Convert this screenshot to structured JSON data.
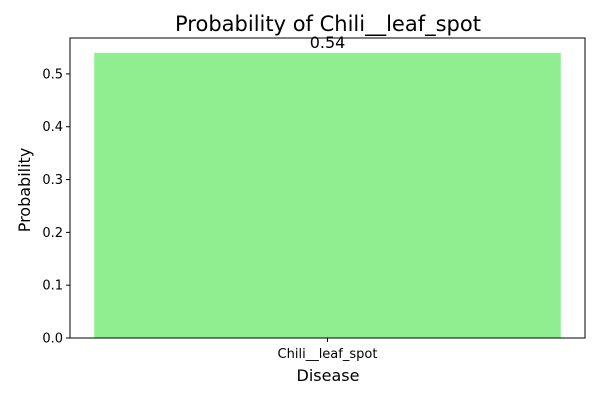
{
  "chart_data": {
    "type": "bar",
    "title": "Probability of Chili__leaf_spot",
    "xlabel": "Disease",
    "ylabel": "Probability",
    "categories": [
      "Chili__leaf_spot"
    ],
    "values": [
      0.54
    ],
    "value_labels": [
      "0.54"
    ],
    "ylim": [
      0,
      0.568
    ],
    "yticks": [
      0.0,
      0.1,
      0.2,
      0.3,
      0.4,
      0.5
    ],
    "ytick_labels": [
      "0.0",
      "0.1",
      "0.2",
      "0.3",
      "0.4",
      "0.5"
    ],
    "bar_color": "#90ee90",
    "grid": false,
    "legend": "none"
  }
}
